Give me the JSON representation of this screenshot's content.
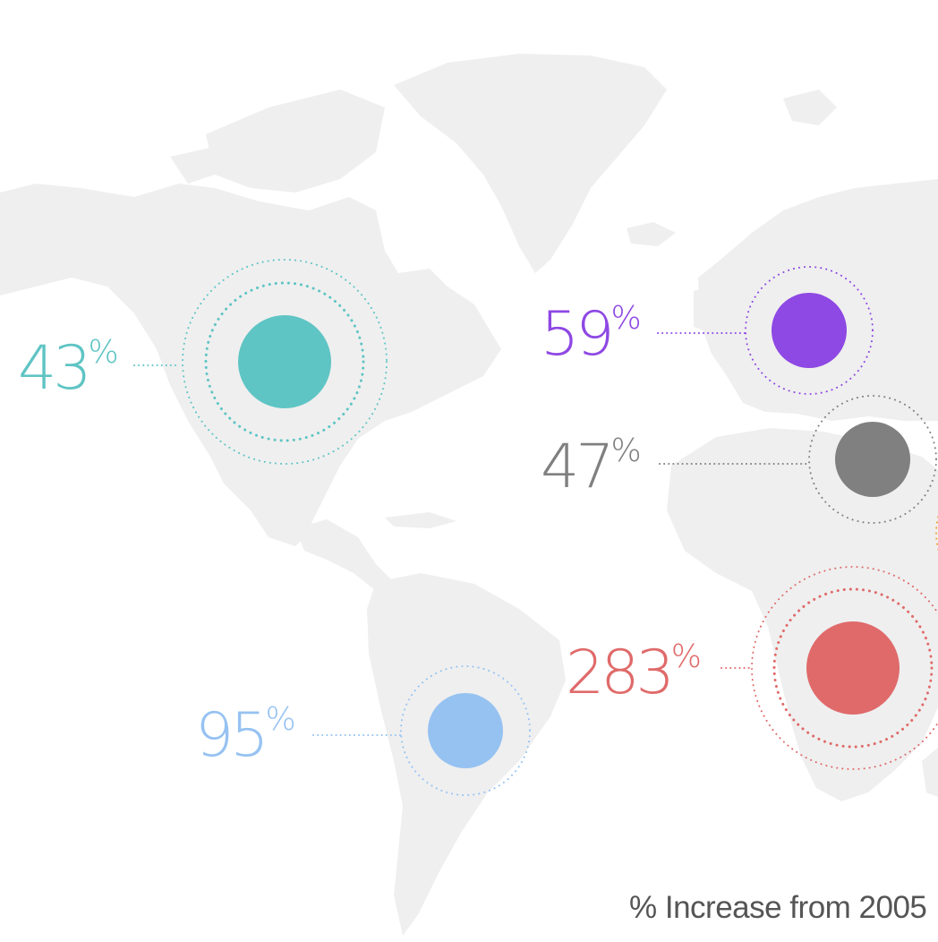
{
  "map": {
    "land_color": "#efefef",
    "background_color": "#ffffff"
  },
  "regions": [
    {
      "id": "north-america",
      "value": "43",
      "sign": "%",
      "color": "#5fc4c4"
    },
    {
      "id": "europe",
      "value": "59",
      "sign": "%",
      "color": "#8e48e3"
    },
    {
      "id": "middle-east",
      "value": "47",
      "sign": "%",
      "color": "#808080"
    },
    {
      "id": "africa",
      "value": "283",
      "sign": "%",
      "color": "#e06a6a"
    },
    {
      "id": "south-america",
      "value": "95",
      "sign": "%",
      "color": "#96c2f2"
    }
  ],
  "partial_marker_color": "#f0a030",
  "footnote": "% Increase from 2005"
}
